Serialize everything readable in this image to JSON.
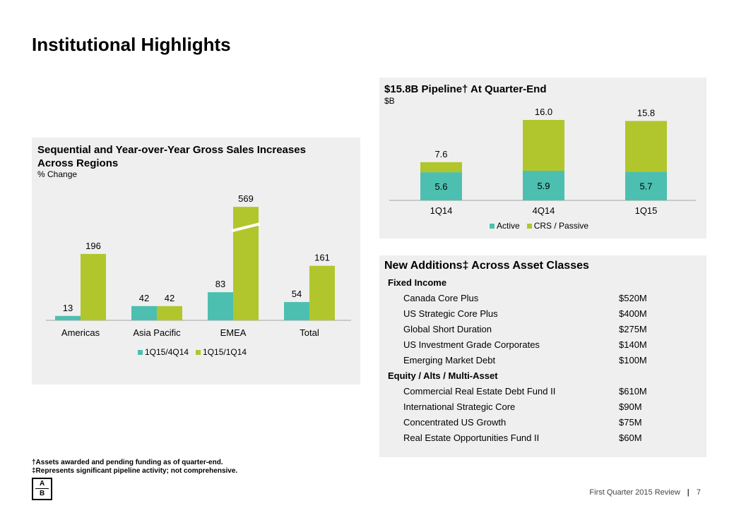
{
  "page": {
    "title": "Institutional Highlights"
  },
  "left_panel": {
    "title_line1": "Sequential and Year-over-Year Gross Sales Increases",
    "title_line2": "Across Regions",
    "subtitle": "% Change"
  },
  "pipeline_panel": {
    "title": "$15.8B Pipeline† At Quarter-End",
    "subtitle": "$B"
  },
  "chart_data": [
    {
      "type": "bar",
      "title": "Sequential and Year-over-Year Gross Sales Increases Across Regions",
      "ylabel": "% Change",
      "categories": [
        "Americas",
        "Asia Pacific",
        "EMEA",
        "Total"
      ],
      "series": [
        {
          "name": "1Q15/4Q14",
          "color": "#4dbfb0",
          "values": [
            13,
            42,
            83,
            54
          ]
        },
        {
          "name": "1Q15/1Q14",
          "color": "#b1c62c",
          "values": [
            196,
            42,
            569,
            161
          ]
        }
      ],
      "annotations": [
        "EMEA 1Q15/1Q14 bar shown with axis break"
      ],
      "legend": "bottom"
    },
    {
      "type": "bar",
      "stacked": true,
      "title": "$15.8B Pipeline† At Quarter-End",
      "ylabel": "$B",
      "categories": [
        "1Q14",
        "4Q14",
        "1Q15"
      ],
      "series": [
        {
          "name": "Active",
          "color": "#4dbfb0",
          "values": [
            5.6,
            5.9,
            5.7
          ]
        },
        {
          "name": "CRS / Passive",
          "color": "#b1c62c",
          "values": [
            2.0,
            10.1,
            10.1
          ]
        }
      ],
      "totals": [
        "7.6",
        "16.0",
        "15.8"
      ],
      "segment_labels": [
        "5.6",
        "5.9",
        "5.7"
      ],
      "ylim": [
        0,
        16.0
      ],
      "legend": "bottom"
    }
  ],
  "additions": {
    "title": "New Additions‡ Across Asset Classes",
    "rows": [
      {
        "label": "Fixed Income",
        "amount": "",
        "category": true
      },
      {
        "label": "Canada Core Plus",
        "amount": "$520M",
        "category": false
      },
      {
        "label": "US Strategic Core Plus",
        "amount": "$400M",
        "category": false
      },
      {
        "label": "Global Short Duration",
        "amount": "$275M",
        "category": false
      },
      {
        "label": "US Investment Grade Corporates",
        "amount": "$140M",
        "category": false
      },
      {
        "label": "Emerging Market Debt",
        "amount": "$100M",
        "category": false
      },
      {
        "label": "Equity / Alts / Multi-Asset",
        "amount": "",
        "category": true
      },
      {
        "label": "Commercial Real Estate Debt Fund II",
        "amount": "$610M",
        "category": false
      },
      {
        "label": "International Strategic Core",
        "amount": "$90M",
        "category": false
      },
      {
        "label": "Concentrated US Growth",
        "amount": "$75M",
        "category": false
      },
      {
        "label": "Real Estate Opportunities Fund II",
        "amount": "$60M",
        "category": false
      }
    ]
  },
  "footnotes": {
    "dagger": "†Assets awarded and pending funding as of quarter-end.",
    "double_dagger": "‡Represents significant pipeline activity; not comprehensive."
  },
  "logo": {
    "letter_a": "A",
    "letter_b": "B"
  },
  "footer": {
    "text": "First Quarter 2015 Review",
    "separator": "|",
    "page_number": "7"
  }
}
